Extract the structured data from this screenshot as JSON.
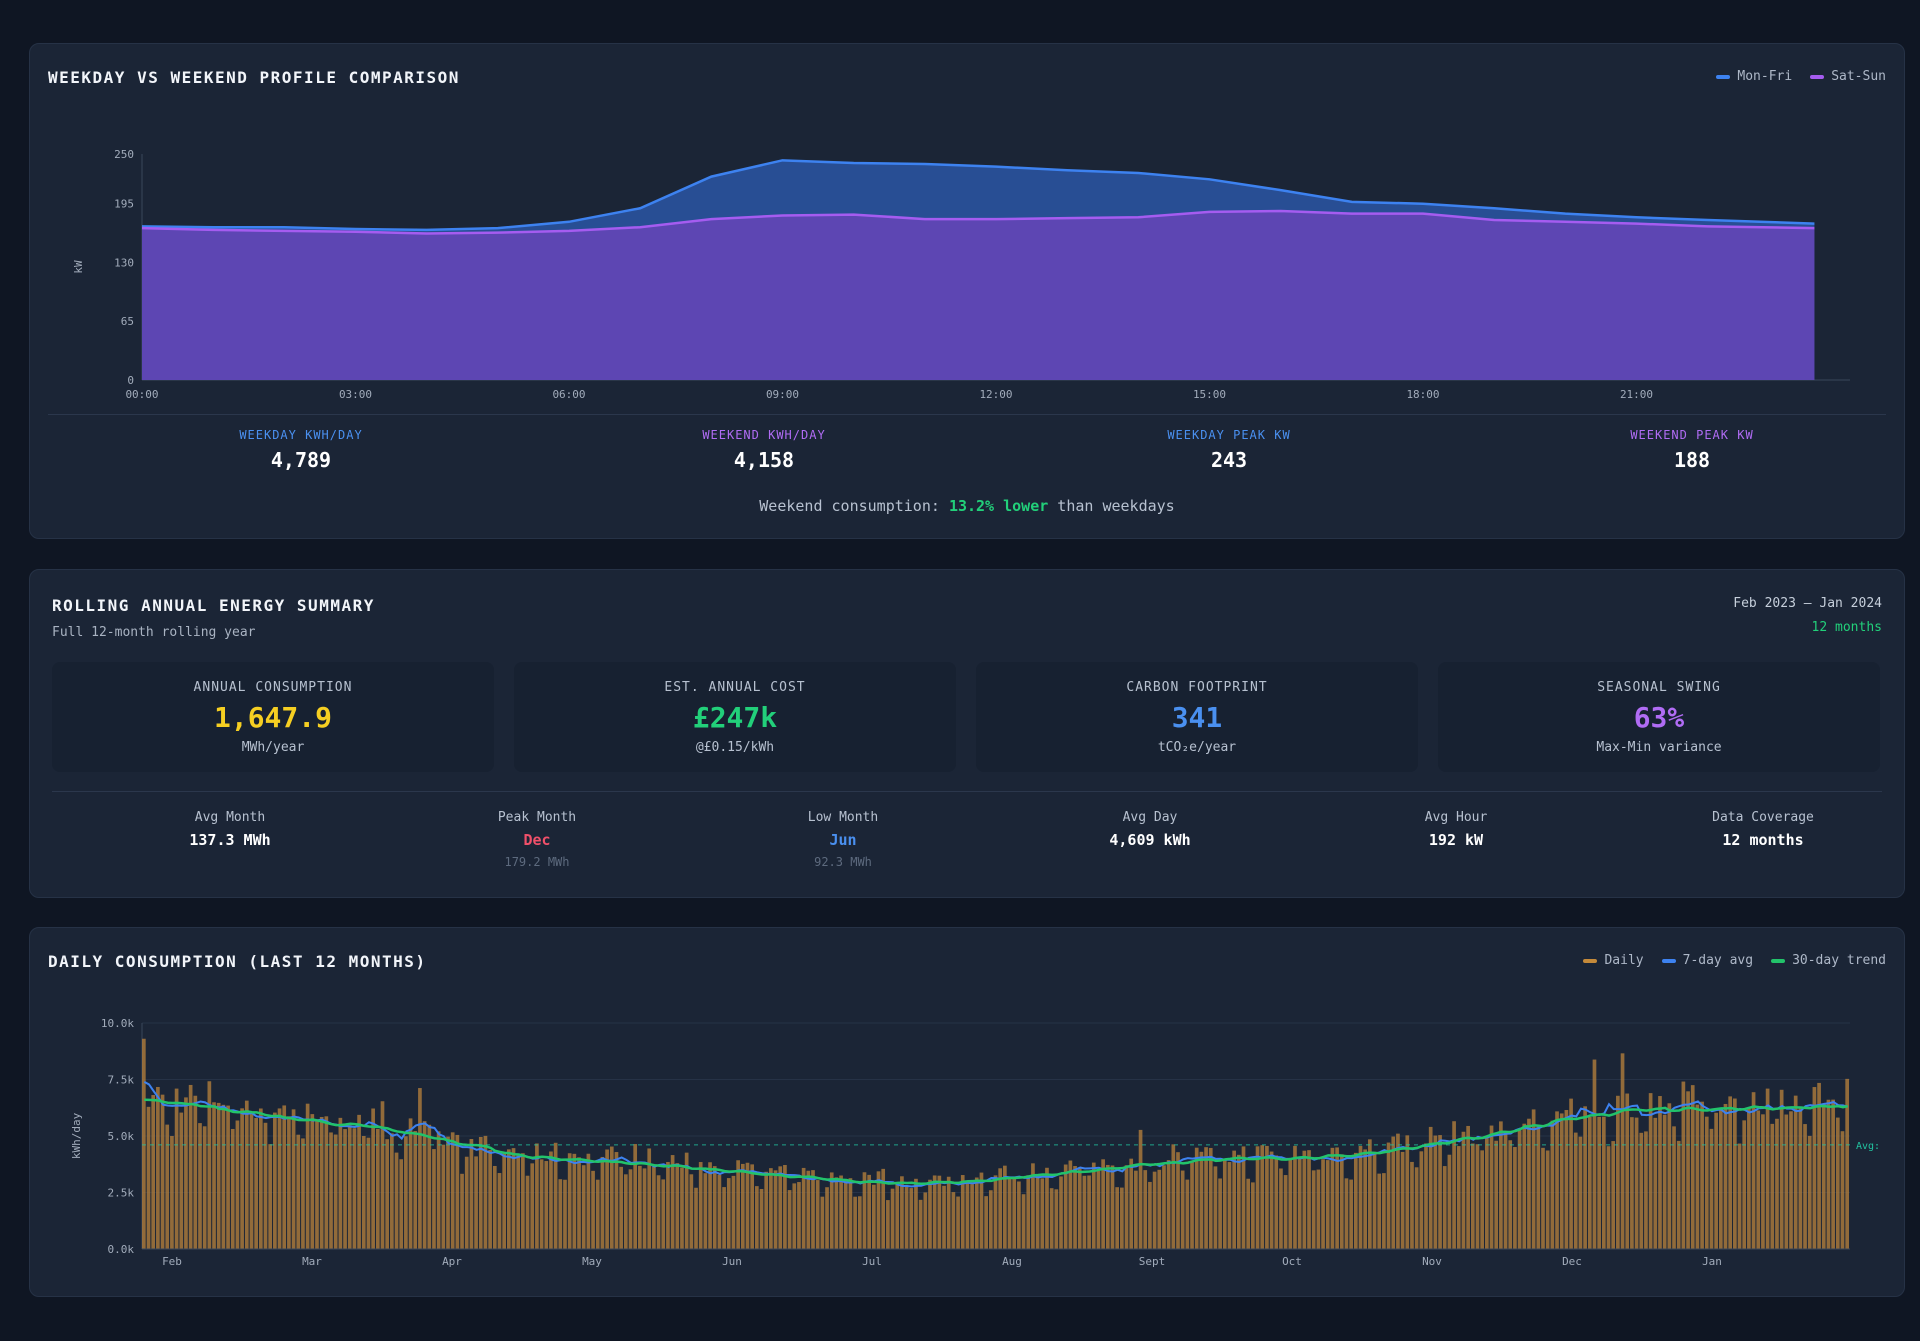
{
  "profile": {
    "title": "WEEKDAY VS WEEKEND PROFILE COMPARISON",
    "legend": [
      {
        "label": "Mon-Fri",
        "color": "#3d82f0"
      },
      {
        "label": "Sat-Sun",
        "color": "#a55cf0"
      }
    ],
    "stats": [
      {
        "label": "WEEKDAY KWH/DAY",
        "value": "4,789",
        "color": "#4a90f0"
      },
      {
        "label": "WEEKEND KWH/DAY",
        "value": "4,158",
        "color": "#b06cf4"
      },
      {
        "label": "WEEKDAY PEAK KW",
        "value": "243",
        "color": "#4a90f0"
      },
      {
        "label": "WEEKEND PEAK KW",
        "value": "188",
        "color": "#b06cf4"
      }
    ],
    "note_prefix": "Weekend consumption: ",
    "note_highlight": "13.2% lower",
    "note_suffix": " than weekdays"
  },
  "summary": {
    "title": "ROLLING ANNUAL ENERGY SUMMARY",
    "subtitle": "Full 12-month rolling year",
    "range": "Feb 2023 – Jan 2024",
    "months": "12 months",
    "kpis": [
      {
        "label": "ANNUAL CONSUMPTION",
        "value": "1,647.9",
        "sub": "MWh/year",
        "color": "#f6cf22"
      },
      {
        "label": "EST. ANNUAL COST",
        "value": "£247k",
        "sub": "@£0.15/kWh",
        "color": "#22d07a"
      },
      {
        "label": "CARBON FOOTPRINT",
        "value": "341",
        "sub": "tCO₂e/year",
        "color": "#4a90f0"
      },
      {
        "label": "SEASONAL SWING",
        "value": "63%",
        "sub": "Max-Min variance",
        "color": "#b06cf4"
      }
    ],
    "mini_stats": [
      {
        "label": "Avg Month",
        "value": "137.3 MWh",
        "sub": "",
        "color": "#ffffff"
      },
      {
        "label": "Peak Month",
        "value": "Dec",
        "sub": "179.2 MWh",
        "color": "#f0506a"
      },
      {
        "label": "Low Month",
        "value": "Jun",
        "sub": "92.3 MWh",
        "color": "#4a90f0"
      },
      {
        "label": "Avg Day",
        "value": "4,609 kWh",
        "sub": "",
        "color": "#ffffff"
      },
      {
        "label": "Avg Hour",
        "value": "192 kW",
        "sub": "",
        "color": "#ffffff"
      },
      {
        "label": "Data Coverage",
        "value": "12 months",
        "sub": "",
        "color": "#ffffff"
      }
    ]
  },
  "daily": {
    "title": "DAILY CONSUMPTION (LAST 12 MONTHS)",
    "legend": [
      {
        "label": "Daily",
        "color": "#c58a3a"
      },
      {
        "label": "7-day avg",
        "color": "#3d82f0"
      },
      {
        "label": "30-day trend",
        "color": "#22c36a"
      }
    ],
    "avg_label": "Avg:"
  },
  "chart_data": [
    {
      "type": "area",
      "ylabel": "kW",
      "ylim": [
        0,
        250
      ],
      "yticks": [
        0,
        65,
        130,
        195,
        250
      ],
      "xticks": [
        "00:00",
        "03:00",
        "06:00",
        "09:00",
        "12:00",
        "15:00",
        "18:00",
        "21:00"
      ],
      "x_hours": [
        0,
        1,
        2,
        3,
        4,
        5,
        6,
        7,
        8,
        9,
        10,
        11,
        12,
        13,
        14,
        15,
        16,
        17,
        18,
        19,
        20,
        21,
        22,
        23.5
      ],
      "series": [
        {
          "name": "Mon-Fri",
          "color": "#3d82f0",
          "values": [
            170,
            169,
            169,
            167,
            166,
            168,
            175,
            190,
            225,
            243,
            240,
            239,
            236,
            232,
            229,
            222,
            210,
            197,
            195,
            190,
            184,
            180,
            177,
            173
          ]
        },
        {
          "name": "Sat-Sun",
          "color": "#a55cf0",
          "values": [
            168,
            166,
            165,
            164,
            162,
            163,
            165,
            169,
            178,
            182,
            183,
            178,
            178,
            179,
            180,
            186,
            187,
            184,
            184,
            177,
            175,
            173,
            170,
            168
          ]
        }
      ]
    },
    {
      "type": "bar",
      "ylabel": "kWh/day",
      "ylim": [
        0,
        10000
      ],
      "yticks": [
        "0.0k",
        "2.5k",
        "5.0k",
        "7.5k",
        "10.0k"
      ],
      "months": [
        "Feb",
        "Mar",
        "Apr",
        "May",
        "Jun",
        "Jul",
        "Aug",
        "Sept",
        "Oct",
        "Nov",
        "Dec",
        "Jan"
      ],
      "monthly_trend": [
        6500,
        5600,
        4200,
        3900,
        3200,
        2900,
        3500,
        4000,
        4200,
        5200,
        6300,
        6500
      ],
      "avg": 4609,
      "series_names": [
        "Daily",
        "7-day avg",
        "30-day trend"
      ]
    }
  ]
}
